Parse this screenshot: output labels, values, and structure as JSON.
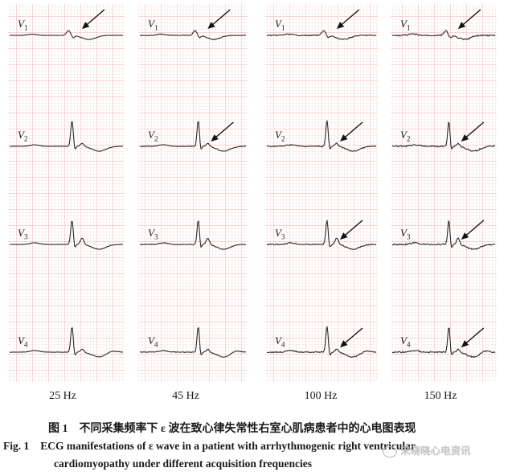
{
  "panels": [
    {
      "frequency": "25 Hz",
      "arrows": [
        true,
        false,
        false,
        false
      ]
    },
    {
      "frequency": "45 Hz",
      "arrows": [
        true,
        true,
        false,
        false
      ]
    },
    {
      "frequency": "100 Hz",
      "arrows": [
        true,
        true,
        true,
        true
      ]
    },
    {
      "frequency": "150 Hz",
      "arrows": [
        true,
        true,
        true,
        true
      ]
    }
  ],
  "leads": [
    "V",
    "V",
    "V",
    "V"
  ],
  "lead_numbers": [
    "1",
    "2",
    "3",
    "4"
  ],
  "caption_cn": {
    "label": "图 1",
    "text": "不同采集频率下 ε 波在致心律失常性右室心肌病患者中的心电图表现"
  },
  "caption_en": {
    "label": "Fig. 1",
    "line1": "ECG manifestations of ε wave in a patient with arrhythmogenic right ventricular",
    "line2": "cardiomyopathy under different acquisition frequencies"
  },
  "watermark": "宋晓晓心电资讯",
  "colors": {
    "grid_minor": "#f6cccc",
    "grid_major": "#ee9a9a",
    "trace": "#2a2a2a"
  }
}
